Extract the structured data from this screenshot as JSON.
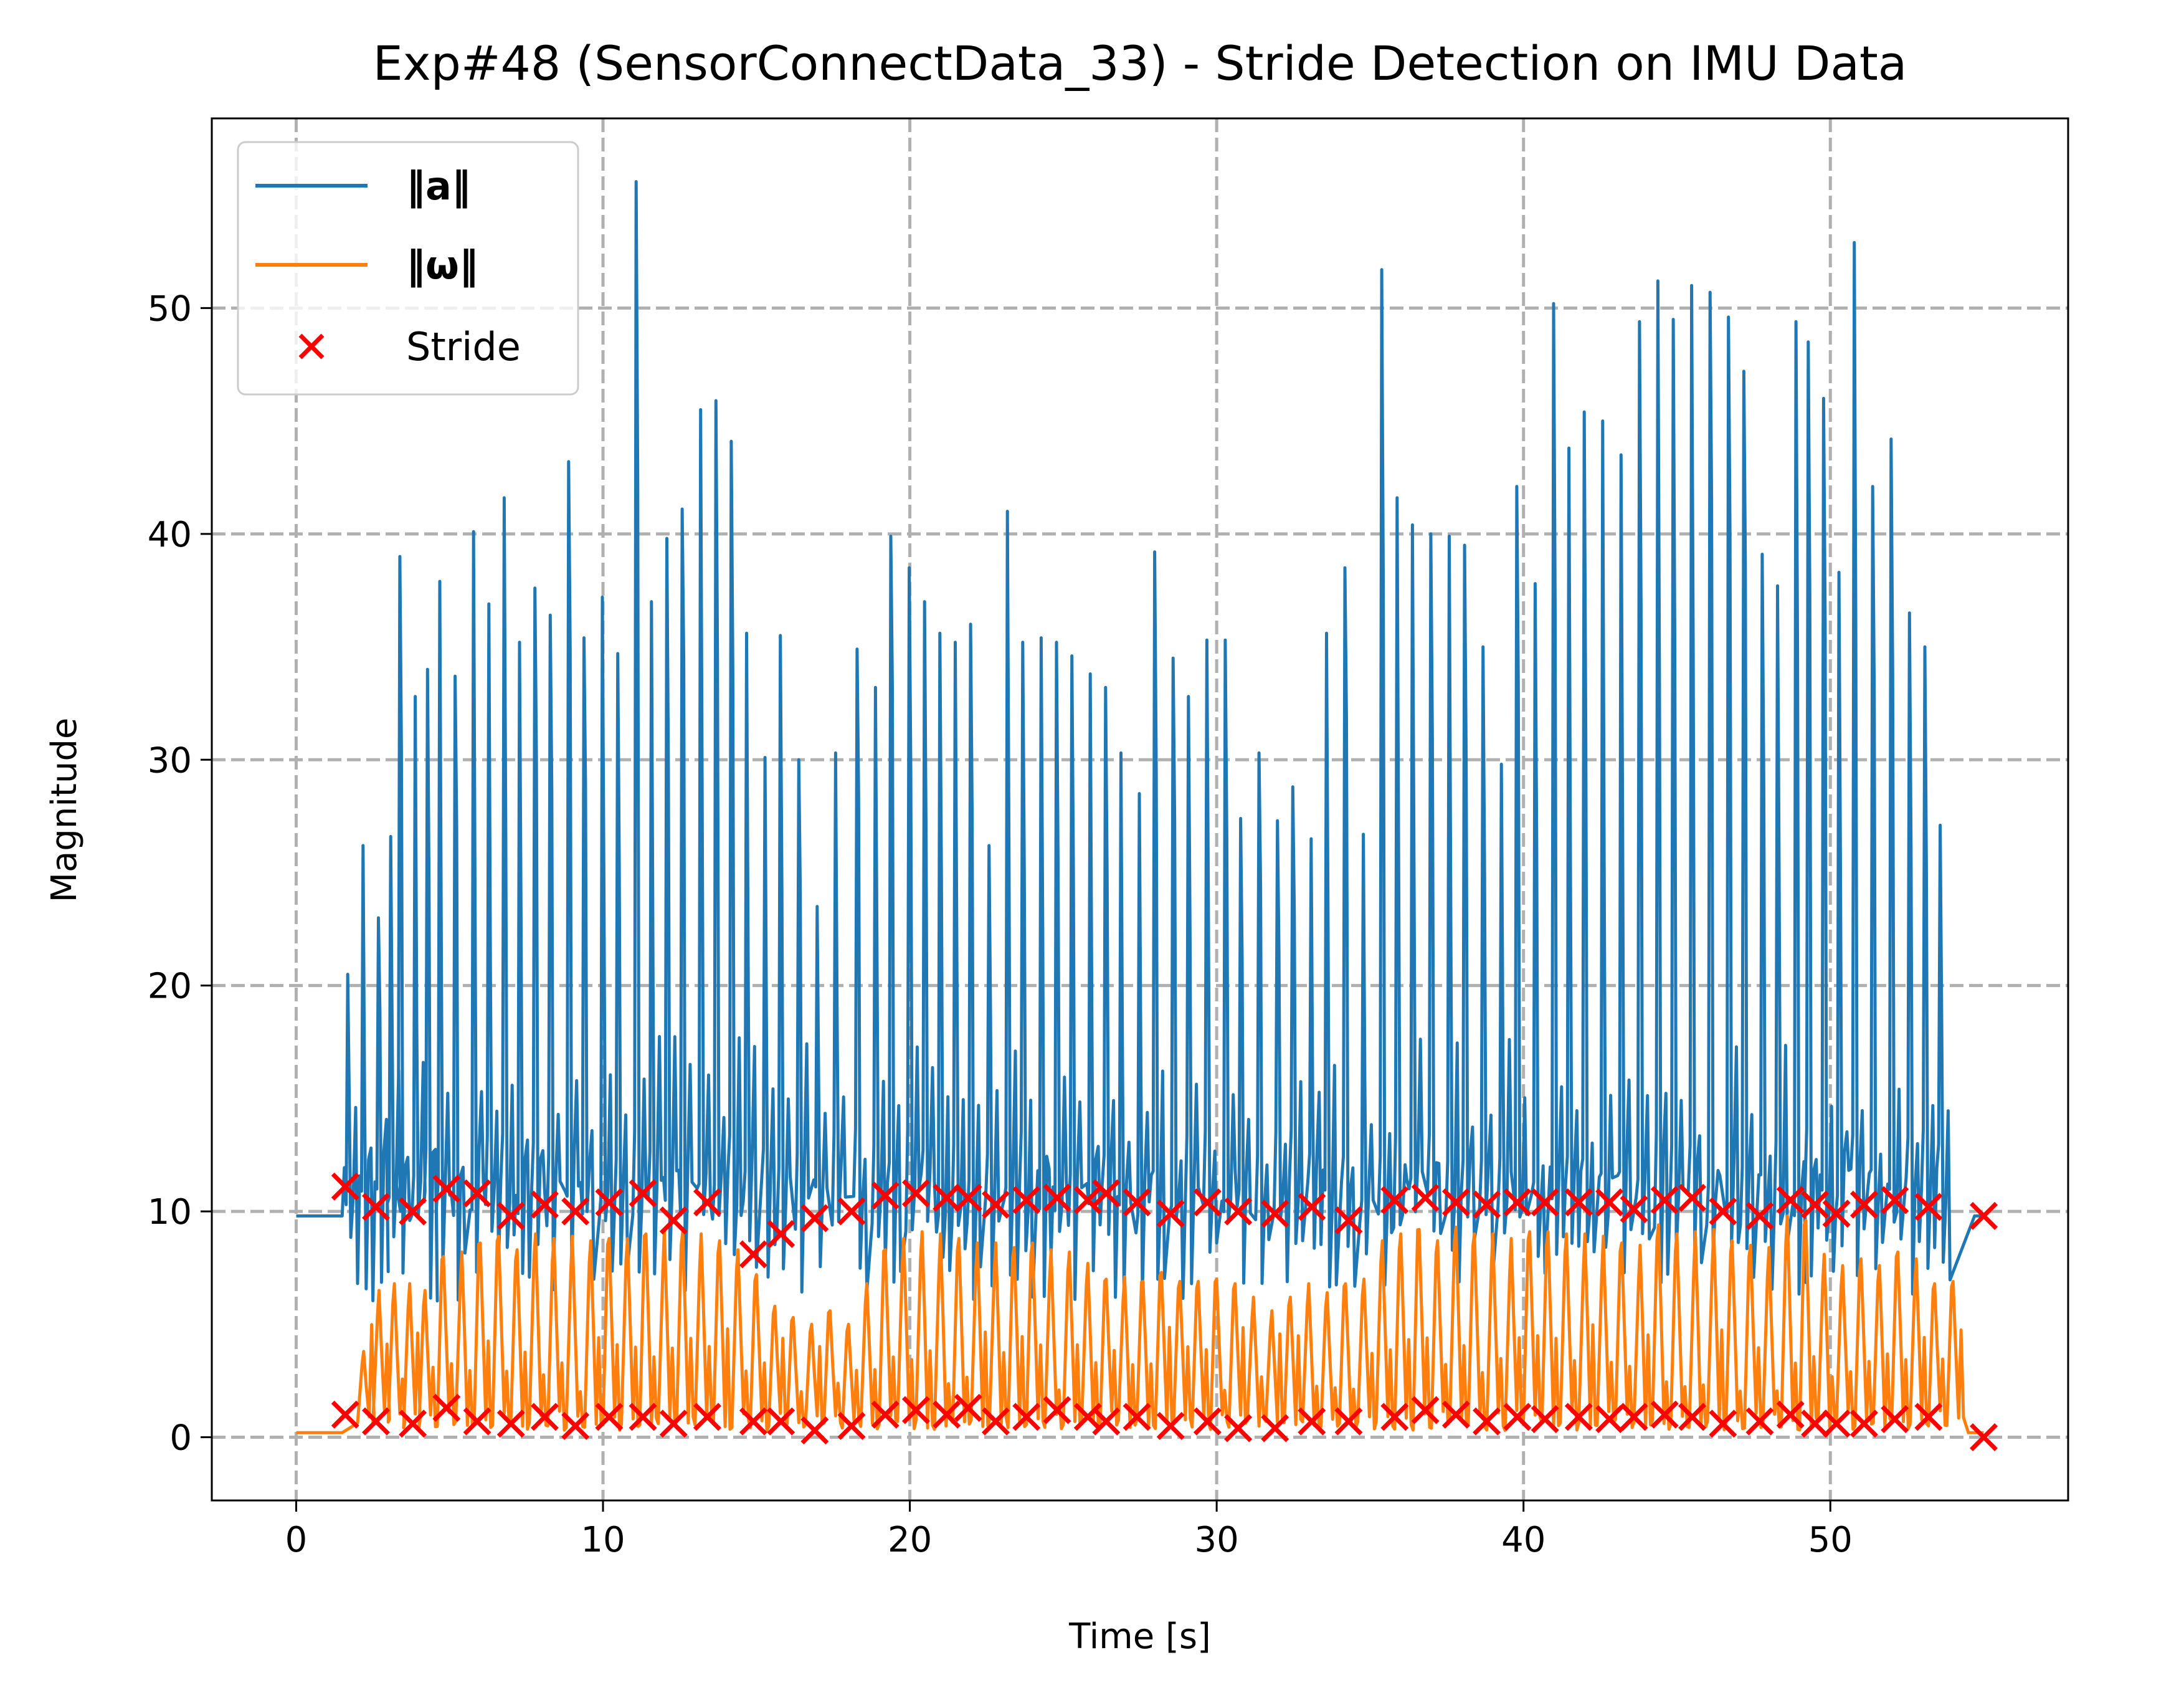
{
  "chart_data": {
    "type": "line",
    "title": "Exp#48 (SensorConnectData_33) - Stride Detection on IMU Data",
    "xlabel": "Time [s]",
    "ylabel": "Magnitude",
    "xlim": [
      -2.75,
      57.75
    ],
    "ylim": [
      -2.8,
      58.4
    ],
    "xticks": [
      0,
      10,
      20,
      30,
      40,
      50
    ],
    "yticks": [
      0,
      10,
      20,
      30,
      40,
      50
    ],
    "grid": true,
    "legend_position": "top-left",
    "colors": {
      "accel": "#1f77b4",
      "gyro": "#ff7f0e",
      "stride": "#ff0000",
      "grid": "#b0b0b0"
    },
    "series": [
      {
        "name": "‖a‖",
        "kind": "line",
        "baseline": 9.8,
        "start": 0,
        "motion_start": 1.5,
        "end": 55.0,
        "peaks": [
          [
            1.7,
            20.5
          ],
          [
            2.2,
            26.2
          ],
          [
            2.7,
            23
          ],
          [
            3.1,
            26.6
          ],
          [
            3.4,
            39.0
          ],
          [
            3.9,
            32.8
          ],
          [
            4.3,
            34.0
          ],
          [
            4.7,
            37.9
          ],
          [
            5.2,
            33.7
          ],
          [
            5.8,
            40.1
          ],
          [
            6.3,
            36.9
          ],
          [
            6.8,
            41.6
          ],
          [
            7.3,
            35.2
          ],
          [
            7.8,
            37.6
          ],
          [
            8.3,
            36.4
          ],
          [
            8.9,
            43.2
          ],
          [
            9.4,
            35.4
          ],
          [
            10.0,
            37.2
          ],
          [
            10.5,
            34.7
          ],
          [
            11.1,
            55.6
          ],
          [
            11.6,
            37.0
          ],
          [
            12.1,
            39.8
          ],
          [
            12.6,
            41.1
          ],
          [
            13.2,
            45.5
          ],
          [
            13.7,
            45.9
          ],
          [
            14.2,
            44.1
          ],
          [
            14.7,
            35.6
          ],
          [
            15.3,
            30.1
          ],
          [
            15.8,
            35.5
          ],
          [
            16.4,
            30.0
          ],
          [
            17.0,
            23.5
          ],
          [
            17.6,
            30.3
          ],
          [
            18.3,
            34.9
          ],
          [
            18.9,
            33.2
          ],
          [
            19.4,
            39.9
          ],
          [
            20.0,
            38.5
          ],
          [
            20.5,
            37.0
          ],
          [
            21.0,
            35.6
          ],
          [
            21.5,
            35.2
          ],
          [
            22.0,
            36.0
          ],
          [
            22.6,
            26.2
          ],
          [
            23.2,
            41.0
          ],
          [
            23.7,
            35.2
          ],
          [
            24.3,
            35.4
          ],
          [
            24.8,
            35.2
          ],
          [
            25.3,
            34.6
          ],
          [
            25.9,
            33.8
          ],
          [
            26.4,
            33.2
          ],
          [
            26.9,
            30.3
          ],
          [
            27.5,
            28.5
          ],
          [
            28.0,
            39.2
          ],
          [
            28.6,
            34.5
          ],
          [
            29.1,
            32.8
          ],
          [
            29.7,
            35.3
          ],
          [
            30.3,
            35.3
          ],
          [
            30.8,
            27.4
          ],
          [
            31.4,
            30.3
          ],
          [
            32.0,
            27.3
          ],
          [
            32.5,
            28.8
          ],
          [
            33.1,
            26.5
          ],
          [
            33.6,
            35.6
          ],
          [
            34.2,
            38.5
          ],
          [
            34.8,
            26.7
          ],
          [
            35.4,
            51.7
          ],
          [
            35.9,
            41.6
          ],
          [
            36.4,
            40.4
          ],
          [
            37.0,
            40.0
          ],
          [
            37.6,
            39.9
          ],
          [
            38.1,
            39.5
          ],
          [
            38.7,
            35.0
          ],
          [
            39.3,
            29.8
          ],
          [
            39.8,
            42.1
          ],
          [
            40.4,
            37.8
          ],
          [
            41.0,
            50.2
          ],
          [
            41.5,
            43.8
          ],
          [
            42.0,
            45.4
          ],
          [
            42.6,
            45.0
          ],
          [
            43.2,
            43.5
          ],
          [
            43.8,
            49.4
          ],
          [
            44.4,
            51.2
          ],
          [
            44.9,
            49.5
          ],
          [
            45.5,
            51.0
          ],
          [
            46.1,
            50.7
          ],
          [
            46.7,
            49.6
          ],
          [
            47.2,
            47.2
          ],
          [
            47.8,
            39.1
          ],
          [
            48.3,
            37.7
          ],
          [
            48.9,
            49.4
          ],
          [
            49.3,
            48.5
          ],
          [
            49.8,
            46.0
          ],
          [
            50.3,
            38.3
          ],
          [
            50.8,
            52.9
          ],
          [
            51.4,
            42.1
          ],
          [
            52.0,
            44.2
          ],
          [
            52.6,
            36.5
          ],
          [
            53.1,
            35.0
          ],
          [
            53.6,
            27.1
          ]
        ]
      },
      {
        "name": "‖ω‖",
        "kind": "line",
        "baseline": 0.2,
        "start": 0,
        "motion_start": 1.5,
        "end": 54.5,
        "peaks": [
          [
            2.2,
            3.8
          ],
          [
            2.7,
            6.5
          ],
          [
            3.2,
            6.8
          ],
          [
            3.7,
            6.8
          ],
          [
            4.2,
            6.5
          ],
          [
            4.8,
            8.0
          ],
          [
            5.4,
            8.2
          ],
          [
            6.0,
            8.6
          ],
          [
            6.6,
            8.9
          ],
          [
            7.2,
            8.3
          ],
          [
            7.8,
            9.0
          ],
          [
            8.4,
            8.8
          ],
          [
            9.0,
            8.9
          ],
          [
            9.6,
            8.7
          ],
          [
            10.2,
            8.8
          ],
          [
            10.8,
            8.8
          ],
          [
            11.4,
            9.0
          ],
          [
            12.0,
            9.2
          ],
          [
            12.6,
            9.1
          ],
          [
            13.2,
            9.0
          ],
          [
            13.8,
            8.7
          ],
          [
            14.4,
            8.3
          ],
          [
            15.0,
            7.2
          ],
          [
            15.6,
            5.8
          ],
          [
            16.2,
            5.3
          ],
          [
            16.8,
            5.0
          ],
          [
            17.4,
            5.6
          ],
          [
            18.0,
            5.0
          ],
          [
            18.6,
            6.8
          ],
          [
            19.2,
            8.3
          ],
          [
            19.8,
            8.8
          ],
          [
            20.4,
            9.1
          ],
          [
            21.0,
            9.0
          ],
          [
            21.6,
            8.8
          ],
          [
            22.2,
            8.6
          ],
          [
            22.8,
            8.6
          ],
          [
            23.4,
            8.4
          ],
          [
            24.0,
            8.6
          ],
          [
            24.6,
            8.3
          ],
          [
            25.2,
            8.2
          ],
          [
            25.8,
            7.7
          ],
          [
            26.4,
            7.0
          ],
          [
            27.0,
            7.1
          ],
          [
            27.6,
            6.9
          ],
          [
            28.2,
            7.3
          ],
          [
            28.8,
            6.9
          ],
          [
            29.4,
            6.9
          ],
          [
            30.0,
            7.0
          ],
          [
            30.6,
            6.8
          ],
          [
            31.2,
            6.2
          ],
          [
            31.8,
            5.6
          ],
          [
            32.4,
            6.2
          ],
          [
            33.0,
            6.8
          ],
          [
            33.6,
            6.4
          ],
          [
            34.2,
            6.8
          ],
          [
            34.8,
            7.0
          ],
          [
            35.4,
            8.7
          ],
          [
            36.0,
            9.0
          ],
          [
            36.6,
            9.2
          ],
          [
            37.2,
            8.7
          ],
          [
            37.8,
            9.3
          ],
          [
            38.4,
            9.0
          ],
          [
            39.0,
            9.0
          ],
          [
            39.6,
            8.8
          ],
          [
            40.2,
            9.1
          ],
          [
            40.8,
            9.1
          ],
          [
            41.4,
            9.0
          ],
          [
            42.0,
            9.0
          ],
          [
            42.6,
            8.9
          ],
          [
            43.2,
            8.6
          ],
          [
            43.8,
            8.5
          ],
          [
            44.4,
            9.4
          ],
          [
            45.0,
            9.0
          ],
          [
            45.6,
            9.1
          ],
          [
            46.2,
            9.2
          ],
          [
            46.8,
            8.7
          ],
          [
            47.4,
            8.5
          ],
          [
            48.0,
            8.4
          ],
          [
            48.6,
            9.8
          ],
          [
            49.2,
            9.6
          ],
          [
            49.8,
            8.1
          ],
          [
            50.4,
            7.6
          ],
          [
            51.0,
            7.9
          ],
          [
            51.6,
            7.6
          ],
          [
            52.2,
            8.2
          ],
          [
            52.8,
            7.9
          ],
          [
            53.4,
            6.8
          ],
          [
            54.0,
            6.9
          ]
        ]
      },
      {
        "name": "Stride",
        "kind": "scatter",
        "marker": "x",
        "points": [
          [
            1.6,
            11.1
          ],
          [
            2.6,
            10.2
          ],
          [
            3.8,
            10.0
          ],
          [
            4.9,
            11.0
          ],
          [
            5.9,
            10.8
          ],
          [
            7.0,
            9.8
          ],
          [
            8.1,
            10.3
          ],
          [
            9.1,
            10.0
          ],
          [
            10.2,
            10.4
          ],
          [
            11.3,
            10.8
          ],
          [
            12.3,
            9.6
          ],
          [
            13.4,
            10.4
          ],
          [
            14.9,
            8.1
          ],
          [
            15.8,
            9.0
          ],
          [
            16.9,
            9.7
          ],
          [
            18.1,
            10.0
          ],
          [
            19.2,
            10.7
          ],
          [
            20.2,
            10.8
          ],
          [
            21.2,
            10.6
          ],
          [
            21.9,
            10.6
          ],
          [
            22.8,
            10.3
          ],
          [
            23.8,
            10.5
          ],
          [
            24.8,
            10.6
          ],
          [
            25.8,
            10.5
          ],
          [
            26.4,
            10.8
          ],
          [
            27.4,
            10.4
          ],
          [
            28.5,
            9.9
          ],
          [
            29.7,
            10.4
          ],
          [
            30.7,
            10.0
          ],
          [
            31.9,
            9.9
          ],
          [
            33.1,
            10.2
          ],
          [
            34.3,
            9.6
          ],
          [
            35.8,
            10.5
          ],
          [
            36.8,
            10.6
          ],
          [
            37.8,
            10.4
          ],
          [
            38.8,
            10.3
          ],
          [
            39.8,
            10.4
          ],
          [
            40.7,
            10.4
          ],
          [
            41.8,
            10.4
          ],
          [
            42.8,
            10.4
          ],
          [
            43.6,
            10.1
          ],
          [
            44.6,
            10.5
          ],
          [
            45.5,
            10.6
          ],
          [
            46.5,
            10.0
          ],
          [
            47.7,
            9.8
          ],
          [
            48.7,
            10.5
          ],
          [
            49.5,
            10.3
          ],
          [
            50.2,
            9.9
          ],
          [
            51.1,
            10.3
          ],
          [
            52.1,
            10.5
          ],
          [
            53.2,
            10.2
          ],
          [
            55.0,
            9.8
          ],
          [
            1.6,
            1.0
          ],
          [
            2.6,
            0.7
          ],
          [
            3.8,
            0.6
          ],
          [
            4.9,
            1.3
          ],
          [
            5.9,
            0.7
          ],
          [
            7.0,
            0.6
          ],
          [
            8.1,
            0.9
          ],
          [
            9.1,
            0.5
          ],
          [
            10.2,
            0.9
          ],
          [
            11.3,
            0.9
          ],
          [
            12.3,
            0.6
          ],
          [
            13.4,
            0.9
          ],
          [
            14.9,
            0.7
          ],
          [
            15.8,
            0.7
          ],
          [
            16.9,
            0.3
          ],
          [
            18.1,
            0.5
          ],
          [
            19.2,
            1.0
          ],
          [
            20.2,
            1.2
          ],
          [
            21.2,
            1.0
          ],
          [
            21.9,
            1.3
          ],
          [
            22.8,
            0.7
          ],
          [
            23.8,
            0.9
          ],
          [
            24.8,
            1.2
          ],
          [
            25.8,
            0.9
          ],
          [
            26.4,
            0.7
          ],
          [
            27.4,
            0.9
          ],
          [
            28.5,
            0.5
          ],
          [
            29.7,
            0.7
          ],
          [
            30.7,
            0.4
          ],
          [
            31.9,
            0.4
          ],
          [
            33.1,
            0.7
          ],
          [
            34.3,
            0.7
          ],
          [
            35.8,
            0.9
          ],
          [
            36.8,
            1.2
          ],
          [
            37.8,
            1.0
          ],
          [
            38.8,
            0.7
          ],
          [
            39.8,
            0.9
          ],
          [
            40.7,
            0.8
          ],
          [
            41.8,
            0.9
          ],
          [
            42.8,
            0.8
          ],
          [
            43.6,
            0.9
          ],
          [
            44.6,
            1.0
          ],
          [
            45.5,
            0.9
          ],
          [
            46.5,
            0.6
          ],
          [
            47.7,
            0.7
          ],
          [
            48.7,
            1.0
          ],
          [
            49.5,
            0.6
          ],
          [
            50.2,
            0.6
          ],
          [
            51.1,
            0.6
          ],
          [
            52.1,
            0.8
          ],
          [
            53.2,
            0.9
          ],
          [
            55.0,
            0.0
          ]
        ]
      }
    ]
  }
}
